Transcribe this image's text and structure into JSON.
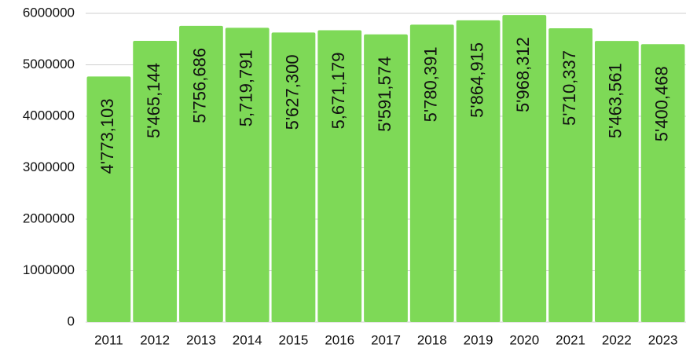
{
  "chart_data": {
    "type": "bar",
    "categories": [
      "2011",
      "2012",
      "2013",
      "2014",
      "2015",
      "2016",
      "2017",
      "2018",
      "2019",
      "2020",
      "2021",
      "2022",
      "2023"
    ],
    "values": [
      4773103,
      5465144,
      5756686,
      5719791,
      5627300,
      5671179,
      5591574,
      5780391,
      5864915,
      5968312,
      5710337,
      5463561,
      5400468
    ],
    "value_labels": [
      "4'773,103",
      "5'465,144",
      "5'756,686",
      "5,719,791",
      "5'627,300",
      "5,671,179",
      "5'591,574",
      "5'780,391",
      "5'864,915",
      "5'968,312",
      "5'710,337",
      "5'463,561",
      "5'400,468"
    ],
    "color": "#7ed957",
    "ylim": [
      0,
      6000000
    ],
    "yticks": [
      0,
      1000000,
      2000000,
      3000000,
      4000000,
      5000000,
      6000000
    ],
    "grid": true
  }
}
